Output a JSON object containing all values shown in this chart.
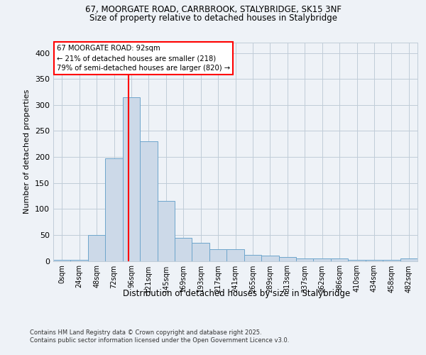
{
  "title1": "67, MOORGATE ROAD, CARRBROOK, STALYBRIDGE, SK15 3NF",
  "title2": "Size of property relative to detached houses in Stalybridge",
  "xlabel": "Distribution of detached houses by size in Stalybridge",
  "ylabel": "Number of detached properties",
  "categories": [
    "0sqm",
    "24sqm",
    "48sqm",
    "72sqm",
    "96sqm",
    "121sqm",
    "145sqm",
    "169sqm",
    "193sqm",
    "217sqm",
    "241sqm",
    "265sqm",
    "289sqm",
    "313sqm",
    "337sqm",
    "362sqm",
    "386sqm",
    "410sqm",
    "434sqm",
    "458sqm",
    "482sqm"
  ],
  "bar_heights": [
    2,
    2,
    50,
    197,
    315,
    230,
    115,
    45,
    35,
    23,
    23,
    12,
    10,
    7,
    5,
    5,
    5,
    2,
    2,
    2,
    5
  ],
  "bar_color": "#ccd9e8",
  "bar_edge_color": "#6ea6cc",
  "bar_width": 1.0,
  "vline_x": 92,
  "vline_color": "red",
  "annotation_text": "67 MOORGATE ROAD: 92sqm\n← 21% of detached houses are smaller (218)\n79% of semi-detached houses are larger (820) →",
  "annotation_box_color": "red",
  "ylim": [
    0,
    420
  ],
  "yticks": [
    0,
    50,
    100,
    150,
    200,
    250,
    300,
    350,
    400
  ],
  "footnote1": "Contains HM Land Registry data © Crown copyright and database right 2025.",
  "footnote2": "Contains public sector information licensed under the Open Government Licence v3.0.",
  "bg_color": "#eef2f7",
  "plot_bg_color": "#eef2f7",
  "grid_color": "#c0ccd8"
}
